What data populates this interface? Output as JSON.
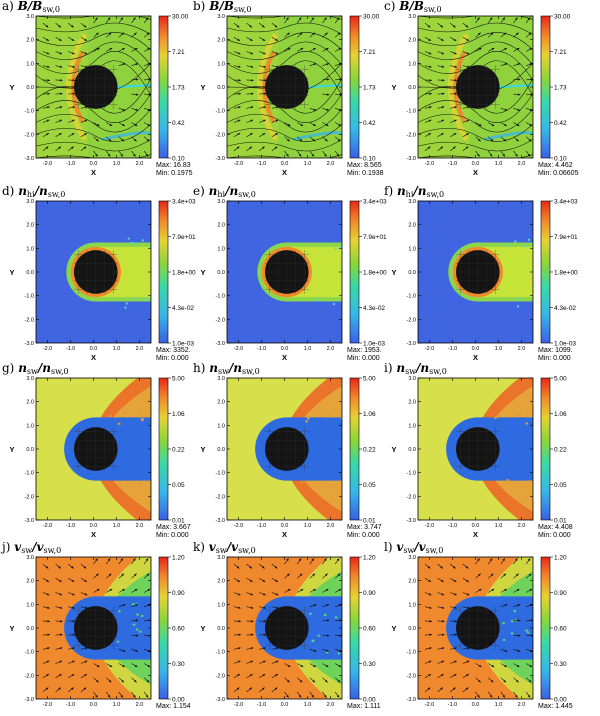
{
  "figure": {
    "axis_x_label": "X",
    "axis_y_label": "Y",
    "x_ticks": [
      "-2.0",
      "-1.0",
      "0.0",
      "1.0",
      "2.0"
    ],
    "y_ticks": [
      "3.0",
      "2.0",
      "1.0",
      "0.0",
      "-1.0",
      "-2.0",
      "-3.0"
    ],
    "colors": {
      "obstacle": "#141414",
      "map_low": "#2f6be0",
      "map_mid": "#7fd23a",
      "map_high": "#e03a1a"
    }
  },
  "chart_data": [
    {
      "id": "a",
      "type": "heatmap",
      "panel_label": "a)",
      "quantity": "B/B",
      "subscript": "sw,0",
      "colorbar_ticks": [
        "30.00",
        "7.21",
        "1.73",
        "0.42",
        "0.10"
      ],
      "stats": {
        "max_text": "Max: 16.83",
        "min_text": "Min: 0.1975"
      },
      "xlim": [
        -2.5,
        2.5
      ],
      "ylim": [
        -3,
        3
      ],
      "pattern": "field",
      "field_arrows": true
    },
    {
      "id": "b",
      "type": "heatmap",
      "panel_label": "b)",
      "quantity": "B/B",
      "subscript": "sw,0",
      "colorbar_ticks": [
        "30.00",
        "7.21",
        "1.73",
        "0.42",
        "0.10"
      ],
      "stats": {
        "max_text": "Max: 8.565",
        "min_text": "Min: 0.1938"
      },
      "xlim": [
        -2.5,
        2.5
      ],
      "ylim": [
        -3,
        3
      ],
      "pattern": "field",
      "field_arrows": true
    },
    {
      "id": "c",
      "type": "heatmap",
      "panel_label": "c)",
      "quantity": "B/B",
      "subscript": "sw,0",
      "colorbar_ticks": [
        "30.00",
        "7.21",
        "1.73",
        "0.42",
        "0.10"
      ],
      "stats": {
        "max_text": "Max: 4.462",
        "min_text": "Min: 0.06605"
      },
      "xlim": [
        -2.5,
        2.5
      ],
      "ylim": [
        -3,
        3
      ],
      "pattern": "field",
      "field_arrows": true
    },
    {
      "id": "d",
      "type": "heatmap",
      "panel_label": "d)",
      "quantity": "n",
      "subscript": "hi",
      "subscript2": "sw,0",
      "quantity2": "/n",
      "colorbar_ticks": [
        "3.4e+03",
        "7.9e+01",
        "1.8e+00",
        "4.3e-02",
        "1.0e-03"
      ],
      "stats": {
        "max_text": "Max: 3352.",
        "min_text": "Min: 0.000"
      },
      "xlim": [
        -2.5,
        2.5
      ],
      "ylim": [
        -3,
        3
      ],
      "pattern": "ions",
      "field_arrows": false
    },
    {
      "id": "e",
      "type": "heatmap",
      "panel_label": "e)",
      "quantity": "n",
      "subscript": "hi",
      "subscript2": "sw,0",
      "quantity2": "/n",
      "colorbar_ticks": [
        "3.4e+03",
        "7.9e+01",
        "1.8e+00",
        "4.3e-02",
        "1.0e-03"
      ],
      "stats": {
        "max_text": "Max: 1953.",
        "min_text": "Min: 0.000"
      },
      "xlim": [
        -2.5,
        2.5
      ],
      "ylim": [
        -3,
        3
      ],
      "pattern": "ions",
      "field_arrows": false
    },
    {
      "id": "f",
      "type": "heatmap",
      "panel_label": "f)",
      "quantity": "n",
      "subscript": "hi",
      "subscript2": "sw,0",
      "quantity2": "/n",
      "colorbar_ticks": [
        "3.4e+03",
        "7.9e+01",
        "1.8e+00",
        "4.3e-02",
        "1.0e-03"
      ],
      "stats": {
        "max_text": "Max: 1099.",
        "min_text": "Min: 0.000"
      },
      "xlim": [
        -2.5,
        2.5
      ],
      "ylim": [
        -3,
        3
      ],
      "pattern": "ions",
      "field_arrows": false
    },
    {
      "id": "g",
      "type": "heatmap",
      "panel_label": "g)",
      "quantity": "n",
      "subscript": "sw",
      "subscript2": "sw,0",
      "quantity2": "/n",
      "colorbar_ticks": [
        "5.00",
        "1.06",
        "0.22",
        "0.05",
        "0.01"
      ],
      "stats": {
        "max_text": "Max: 3.667",
        "min_text": "Min: 0.000"
      },
      "xlim": [
        -2.5,
        2.5
      ],
      "ylim": [
        -3,
        3
      ],
      "pattern": "density",
      "field_arrows": false
    },
    {
      "id": "h",
      "type": "heatmap",
      "panel_label": "h)",
      "quantity": "n",
      "subscript": "sw",
      "subscript2": "sw,0",
      "quantity2": "/n",
      "colorbar_ticks": [
        "5.00",
        "1.06",
        "0.22",
        "0.05",
        "0.01"
      ],
      "stats": {
        "max_text": "Max: 3.747",
        "min_text": "Min: 0.000"
      },
      "xlim": [
        -2.5,
        2.5
      ],
      "ylim": [
        -3,
        3
      ],
      "pattern": "density",
      "field_arrows": false
    },
    {
      "id": "i",
      "type": "heatmap",
      "panel_label": "i)",
      "quantity": "n",
      "subscript": "sw",
      "subscript2": "sw,0",
      "quantity2": "/n",
      "colorbar_ticks": [
        "5.00",
        "1.06",
        "0.22",
        "0.05",
        "0.01"
      ],
      "stats": {
        "max_text": "Max: 4.408",
        "min_text": "Min: 0.000"
      },
      "xlim": [
        -2.5,
        2.5
      ],
      "ylim": [
        -3,
        3
      ],
      "pattern": "density",
      "field_arrows": false
    },
    {
      "id": "j",
      "type": "heatmap",
      "panel_label": "j)",
      "quantity": "v",
      "subscript": "sw",
      "subscript2": "sw,0",
      "quantity2": "/v",
      "colorbar_ticks": [
        "1.20",
        "0.90",
        "0.60",
        "0.30",
        "0.00"
      ],
      "stats": {
        "max_text": "Max: 1.154",
        "min_text": "Min: 0.000"
      },
      "xlim": [
        -2.5,
        2.5
      ],
      "ylim": [
        -3,
        3
      ],
      "pattern": "velocity",
      "field_arrows": true
    },
    {
      "id": "k",
      "type": "heatmap",
      "panel_label": "k)",
      "quantity": "v",
      "subscript": "sw",
      "subscript2": "sw,0",
      "quantity2": "/v",
      "colorbar_ticks": [
        "1.20",
        "0.90",
        "0.60",
        "0.30",
        "0.00"
      ],
      "stats": {
        "max_text": "Max: 1.111",
        "min_text": "Min: 0.000"
      },
      "xlim": [
        -2.5,
        2.5
      ],
      "ylim": [
        -3,
        3
      ],
      "pattern": "velocity",
      "field_arrows": true
    },
    {
      "id": "l",
      "type": "heatmap",
      "panel_label": "l)",
      "quantity": "v",
      "subscript": "sw",
      "subscript2": "sw,0",
      "quantity2": "/v",
      "colorbar_ticks": [
        "1.20",
        "0.90",
        "0.60",
        "0.30",
        "0.00"
      ],
      "stats": {
        "max_text": "Max: 1.445",
        "min_text": "Min: 0.000"
      },
      "xlim": [
        -2.5,
        2.5
      ],
      "ylim": [
        -3,
        3
      ],
      "pattern": "velocity",
      "field_arrows": true
    }
  ]
}
